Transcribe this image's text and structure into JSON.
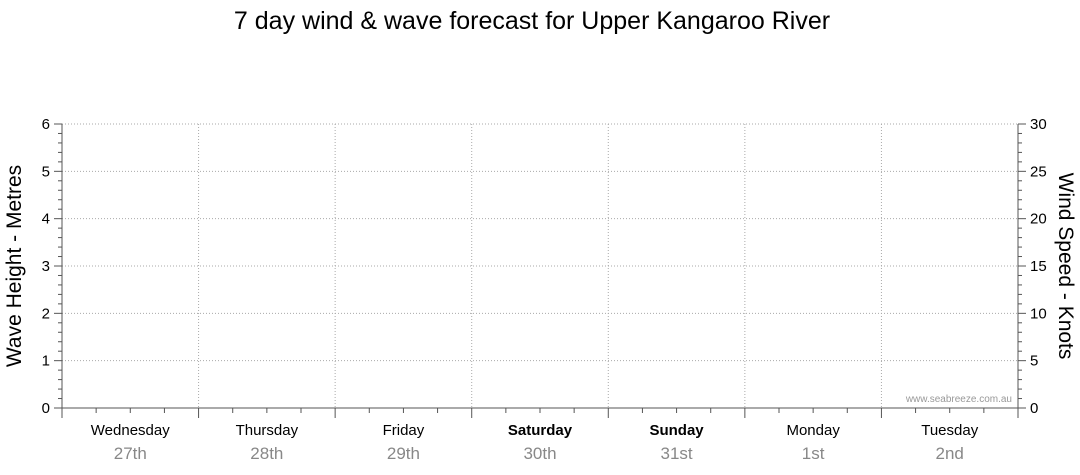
{
  "chart_data": {
    "type": "line",
    "title": "7 day wind & wave forecast for Upper Kangaroo River",
    "ylabel_left": "Wave Height - Metres",
    "ylabel_right": "Wind Speed - Knots",
    "y_left_range": [
      0,
      6
    ],
    "y_left_ticks": [
      "0",
      "1",
      "2",
      "3",
      "4",
      "5",
      "6"
    ],
    "y_right_range": [
      0,
      30
    ],
    "y_right_ticks": [
      "0",
      "5",
      "10",
      "15",
      "20",
      "25",
      "30"
    ],
    "grid": true,
    "days": [
      {
        "day": "Wednesday",
        "date": "27th",
        "weekend": false
      },
      {
        "day": "Thursday",
        "date": "28th",
        "weekend": false
      },
      {
        "day": "Friday",
        "date": "29th",
        "weekend": false
      },
      {
        "day": "Saturday",
        "date": "30th",
        "weekend": true
      },
      {
        "day": "Sunday",
        "date": "31st",
        "weekend": true
      },
      {
        "day": "Monday",
        "date": "1st",
        "weekend": false
      },
      {
        "day": "Tuesday",
        "date": "2nd",
        "weekend": false
      }
    ],
    "series": [],
    "credit": "www.seabreeze.com.au"
  },
  "colors": {
    "gridline": "#aaaaaa",
    "axis": "#555555",
    "date_text": "#888888",
    "credit_text": "#999999"
  }
}
